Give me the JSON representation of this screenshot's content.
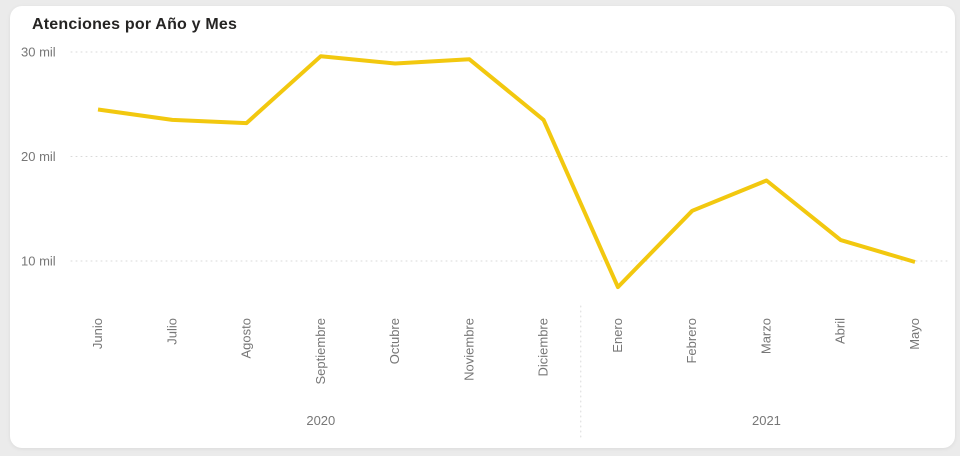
{
  "card": {
    "title": "Atenciones por Año y Mes"
  },
  "chart_data": {
    "type": "line",
    "title": "Atenciones por Año y Mes",
    "categories": [
      "Junio",
      "Julio",
      "Agosto",
      "Septiembre",
      "Octubre",
      "Noviembre",
      "Diciembre",
      "Enero",
      "Febrero",
      "Marzo",
      "Abril",
      "Mayo"
    ],
    "x_group_labels": [
      {
        "label": "2020",
        "span": [
          0,
          6
        ]
      },
      {
        "label": "2021",
        "span": [
          7,
          11
        ]
      }
    ],
    "series": [
      {
        "name": "Atenciones",
        "color": "#F2C80F",
        "values": [
          24500,
          23500,
          23200,
          29600,
          28900,
          29300,
          23500,
          7500,
          14800,
          17700,
          12000,
          9900
        ]
      }
    ],
    "y_ticks": [
      {
        "value": 30000,
        "label": "30 mil"
      },
      {
        "value": 20000,
        "label": "20 mil"
      },
      {
        "value": 10000,
        "label": "10 mil"
      }
    ],
    "ylim": [
      5000,
      31500
    ],
    "grid": "dotted-horizontal",
    "legend": "none",
    "colors": {
      "line": "#F2C80F",
      "grid": "#D9D9D9",
      "axis_text": "#777777",
      "title_text": "#252423",
      "card_bg": "#FFFFFF",
      "page_bg": "#EBEBEB"
    }
  }
}
